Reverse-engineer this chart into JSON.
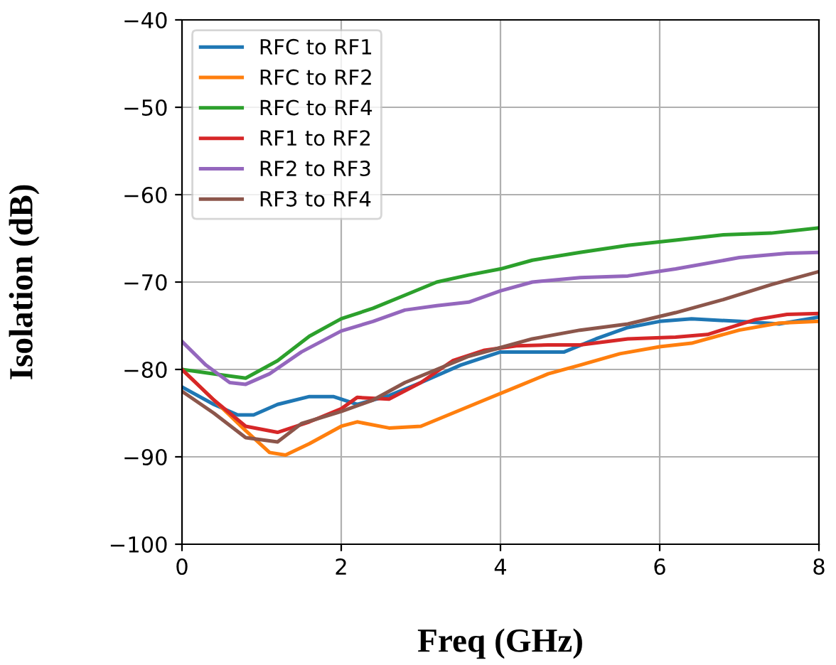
{
  "chart_data": {
    "type": "line",
    "xlabel": "Freq (GHz)",
    "ylabel": "Isolation (dB)",
    "xlim": [
      0,
      8
    ],
    "ylim": [
      -100,
      -40
    ],
    "xticks": [
      0,
      2,
      4,
      6,
      8
    ],
    "yticks": [
      -100,
      -90,
      -80,
      -70,
      -60,
      -50,
      -40
    ],
    "grid": true,
    "legend": "top left",
    "series": [
      {
        "name": "RFC to RF1",
        "color": "#1f77b4",
        "x": [
          0,
          0.4,
          0.7,
          0.9,
          1.2,
          1.6,
          1.9,
          2.2,
          2.6,
          3,
          3.5,
          4,
          4.4,
          4.8,
          5.2,
          5.6,
          6,
          6.4,
          7,
          7.5,
          8
        ],
        "values": [
          -82,
          -84,
          -85.2,
          -85.2,
          -84,
          -83.1,
          -83.1,
          -84,
          -83,
          -81.5,
          -79.5,
          -78,
          -78,
          -78,
          -76.5,
          -75.2,
          -74.5,
          -74.2,
          -74.5,
          -74.8,
          -74
        ]
      },
      {
        "name": "RFC to RF2",
        "color": "#ff7f0e",
        "x": [
          0,
          0.4,
          0.8,
          1.1,
          1.3,
          1.6,
          2,
          2.2,
          2.6,
          3,
          3.4,
          3.8,
          4.2,
          4.6,
          5,
          5.5,
          6,
          6.4,
          7,
          7.5,
          8
        ],
        "values": [
          -80,
          -83.5,
          -87,
          -89.5,
          -89.8,
          -88.5,
          -86.5,
          -86,
          -86.7,
          -86.5,
          -85,
          -83.5,
          -82,
          -80.5,
          -79.5,
          -78.2,
          -77.4,
          -77,
          -75.5,
          -74.7,
          -74.5
        ]
      },
      {
        "name": "RFC to RF4",
        "color": "#2ca02c",
        "x": [
          0,
          0.4,
          0.8,
          1.2,
          1.6,
          2,
          2.4,
          2.8,
          3.2,
          3.6,
          4,
          4.4,
          5,
          5.6,
          6.2,
          6.8,
          7.4,
          8
        ],
        "values": [
          -80,
          -80.5,
          -81,
          -79,
          -76.2,
          -74.2,
          -73,
          -71.5,
          -70,
          -69.2,
          -68.5,
          -67.5,
          -66.6,
          -65.8,
          -65.2,
          -64.6,
          -64.4,
          -63.8
        ]
      },
      {
        "name": "RF1 to RF2",
        "color": "#d62728",
        "x": [
          0,
          0.4,
          0.8,
          1.2,
          1.6,
          2,
          2.2,
          2.6,
          3,
          3.4,
          3.8,
          4.2,
          4.6,
          5,
          5.6,
          6.2,
          6.6,
          7.2,
          7.6,
          8
        ],
        "values": [
          -80,
          -83.5,
          -86.5,
          -87.2,
          -86,
          -84.5,
          -83.2,
          -83.4,
          -81.5,
          -79,
          -77.8,
          -77.3,
          -77.2,
          -77.2,
          -76.5,
          -76.3,
          -76,
          -74.3,
          -73.7,
          -73.6
        ]
      },
      {
        "name": "RF2 to RF3",
        "color": "#9467bd",
        "x": [
          0,
          0.3,
          0.6,
          0.8,
          1.1,
          1.5,
          2,
          2.4,
          2.8,
          3.2,
          3.6,
          4,
          4.4,
          5,
          5.6,
          6.2,
          7,
          7.6,
          8
        ],
        "values": [
          -76.8,
          -79.5,
          -81.5,
          -81.7,
          -80.5,
          -78,
          -75.6,
          -74.5,
          -73.2,
          -72.7,
          -72.3,
          -71,
          -70,
          -69.5,
          -69.3,
          -68.5,
          -67.2,
          -66.7,
          -66.6
        ]
      },
      {
        "name": "RF3 to RF4",
        "color": "#8c564b",
        "x": [
          0,
          0.4,
          0.8,
          1.2,
          1.5,
          2,
          2.4,
          2.8,
          3.2,
          3.6,
          4,
          4.4,
          5,
          5.6,
          6.2,
          6.8,
          7.4,
          8
        ],
        "values": [
          -82.5,
          -85,
          -87.8,
          -88.3,
          -86.2,
          -84.8,
          -83.5,
          -81.5,
          -80,
          -78.5,
          -77.5,
          -76.5,
          -75.5,
          -74.8,
          -73.5,
          -72,
          -70.3,
          -68.8
        ]
      }
    ]
  }
}
